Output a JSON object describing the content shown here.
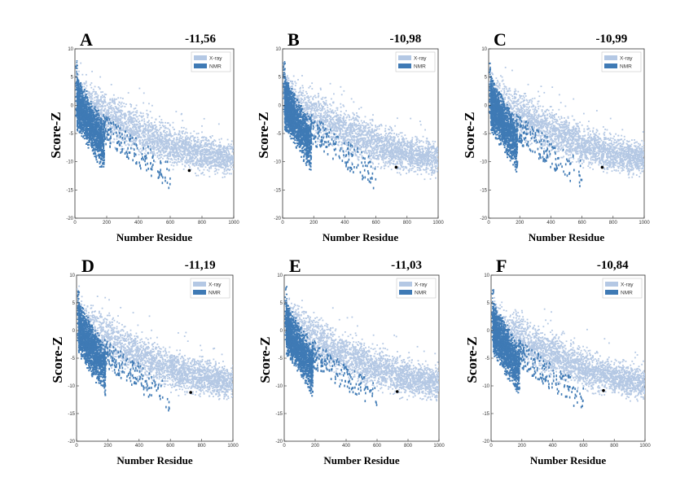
{
  "chart_data": [
    {
      "type": "scatter",
      "panel": "A",
      "score": "-11,56",
      "xlabel": "Number Residue",
      "ylabel": "Score-Z",
      "xlim": [
        0,
        1000
      ],
      "ylim": [
        -20,
        10
      ],
      "xticks": [
        0,
        200,
        400,
        600,
        800,
        1000
      ],
      "yticks": [
        10,
        5,
        0,
        -5,
        -10,
        -15,
        -20
      ],
      "legend": {
        "position": "top-right",
        "entries": [
          "X-ray",
          "NMR"
        ]
      },
      "series": [
        {
          "name": "X-ray",
          "color": "#b4c8e4"
        },
        {
          "name": "NMR",
          "color": "#3f7ab5"
        }
      ],
      "highlight": {
        "x": 720,
        "y": -11.56
      }
    },
    {
      "type": "scatter",
      "panel": "B",
      "score": "-10,98",
      "xlabel": "Number Residue",
      "ylabel": "Score-Z",
      "xlim": [
        0,
        1000
      ],
      "ylim": [
        -20,
        10
      ],
      "xticks": [
        0,
        200,
        400,
        600,
        800,
        1000
      ],
      "yticks": [
        10,
        5,
        0,
        -5,
        -10,
        -15,
        -20
      ],
      "legend": {
        "position": "top-right",
        "entries": [
          "X-ray",
          "NMR"
        ]
      },
      "series": [
        {
          "name": "X-ray",
          "color": "#b4c8e4"
        },
        {
          "name": "NMR",
          "color": "#3f7ab5"
        }
      ],
      "highlight": {
        "x": 730,
        "y": -10.98
      }
    },
    {
      "type": "scatter",
      "panel": "C",
      "score": "-10,99",
      "xlabel": "Number Residue",
      "ylabel": "Score-Z",
      "xlim": [
        0,
        1000
      ],
      "ylim": [
        -20,
        10
      ],
      "xticks": [
        0,
        200,
        400,
        600,
        800,
        1000
      ],
      "yticks": [
        10,
        5,
        0,
        -5,
        -10,
        -15,
        -20
      ],
      "legend": {
        "position": "top-right",
        "entries": [
          "X-ray",
          "NMR"
        ]
      },
      "series": [
        {
          "name": "X-ray",
          "color": "#b4c8e4"
        },
        {
          "name": "NMR",
          "color": "#3f7ab5"
        }
      ],
      "highlight": {
        "x": 730,
        "y": -10.99
      }
    },
    {
      "type": "scatter",
      "panel": "D",
      "score": "-11,19",
      "xlabel": "Number Residue",
      "ylabel": "Score-Z",
      "xlim": [
        0,
        1000
      ],
      "ylim": [
        -20,
        10
      ],
      "xticks": [
        0,
        200,
        400,
        600,
        800,
        1000
      ],
      "yticks": [
        10,
        5,
        0,
        -5,
        -10,
        -15,
        -20
      ],
      "legend": {
        "position": "top-right",
        "entries": [
          "X-ray",
          "NMR"
        ]
      },
      "series": [
        {
          "name": "X-ray",
          "color": "#b4c8e4"
        },
        {
          "name": "NMR",
          "color": "#3f7ab5"
        }
      ],
      "highlight": {
        "x": 730,
        "y": -11.19
      }
    },
    {
      "type": "scatter",
      "panel": "E",
      "score": "-11,03",
      "xlabel": "Number Residue",
      "ylabel": "Score-Z",
      "xlim": [
        0,
        1000
      ],
      "ylim": [
        -20,
        10
      ],
      "xticks": [
        0,
        200,
        400,
        600,
        800,
        1000
      ],
      "yticks": [
        10,
        5,
        0,
        -5,
        -10,
        -15,
        -20
      ],
      "legend": {
        "position": "top-right",
        "entries": [
          "X-ray",
          "NMR"
        ]
      },
      "series": [
        {
          "name": "X-ray",
          "color": "#b4c8e4"
        },
        {
          "name": "NMR",
          "color": "#3f7ab5"
        }
      ],
      "highlight": {
        "x": 730,
        "y": -11.03
      }
    },
    {
      "type": "scatter",
      "panel": "F",
      "score": "-10,84",
      "xlabel": "Number Residue",
      "ylabel": "Score-Z",
      "xlim": [
        0,
        1000
      ],
      "ylim": [
        -20,
        10
      ],
      "xticks": [
        0,
        200,
        400,
        600,
        800,
        1000
      ],
      "yticks": [
        10,
        5,
        0,
        -5,
        -10,
        -15,
        -20
      ],
      "legend": {
        "position": "top-right",
        "entries": [
          "X-ray",
          "NMR"
        ]
      },
      "series": [
        {
          "name": "X-ray",
          "color": "#b4c8e4"
        },
        {
          "name": "NMR",
          "color": "#3f7ab5"
        }
      ],
      "highlight": {
        "x": 730,
        "y": -10.84
      }
    }
  ]
}
